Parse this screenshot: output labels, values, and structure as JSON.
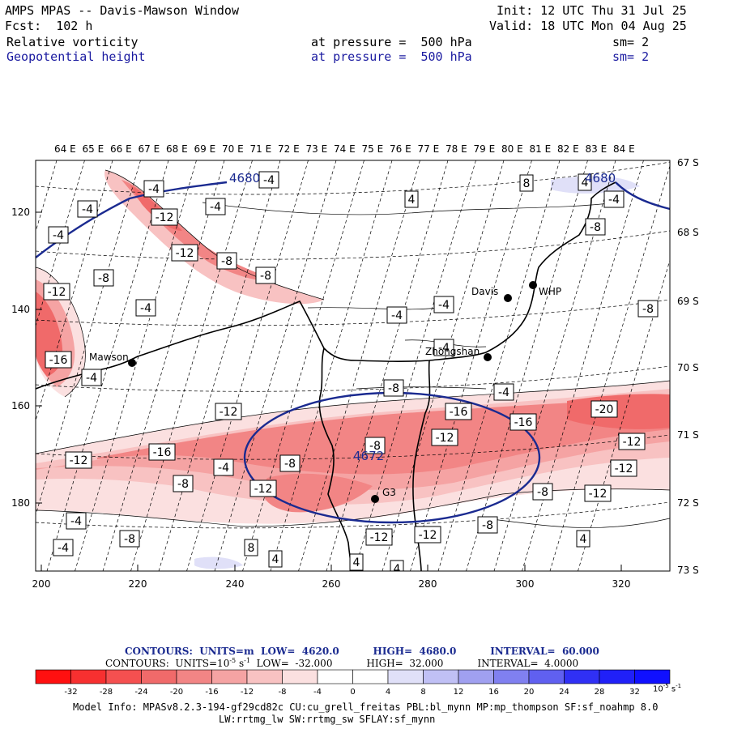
{
  "header": {
    "title": "AMPS MPAS -- Davis-Mawson Window",
    "fcst": "Fcst:  102 h",
    "init": "Init: 12 UTC Thu 31 Jul 25",
    "valid": "Valid: 18 UTC Mon 04 Aug 25",
    "field1": {
      "name": "Relative vorticity",
      "level": "at pressure =  500 hPa",
      "sm": "sm= 2"
    },
    "field2": {
      "name": "Geopotential height",
      "level": "at pressure =  500 hPa",
      "sm": "sm= 2"
    }
  },
  "map": {
    "top_labels": [
      "64 E",
      "65 E",
      "66 E",
      "67 E",
      "68 E",
      "69 E",
      "70 E",
      "71 E",
      "72 E",
      "73 E",
      "74 E",
      "75 E",
      "76 E",
      "77 E",
      "78 E",
      "79 E",
      "80 E",
      "81 E",
      "82 E",
      "83 E",
      "84 E"
    ],
    "right_labels": [
      "67 S",
      "68 S",
      "69 S",
      "70 S",
      "71 S",
      "72 S",
      "73 S"
    ],
    "left_labels": [
      "120",
      "140",
      "160",
      "180"
    ],
    "bottom_labels": [
      "200",
      "220",
      "240",
      "260",
      "280",
      "300",
      "320"
    ],
    "stations": [
      {
        "name": "Mawson"
      },
      {
        "name": "Davis"
      },
      {
        "name": "WHP"
      },
      {
        "name": "Zhongshan"
      },
      {
        "name": "G3"
      }
    ],
    "height_labels": [
      "4680",
      "4680",
      "4672"
    ],
    "vort_labels": [
      "-4",
      "-4",
      "-4",
      "-4",
      "-12",
      "-4",
      "-12",
      "-8",
      "-8",
      "-12",
      "-8",
      "-4",
      "-4",
      "-16",
      "-4",
      "-4",
      "-4",
      "-8",
      "-4",
      "-12",
      "-16",
      "-12",
      "-16",
      "-20",
      "-12",
      "-8",
      "-12",
      "-16",
      "-12",
      "-8",
      "-8",
      "-12",
      "-4",
      "-8",
      "-12",
      "-8",
      "-4",
      "-8",
      "-4",
      "-12",
      "-12",
      "-8",
      "-4",
      "-8",
      "4",
      "8",
      "4",
      "4",
      "8",
      "4",
      "4",
      "4"
    ]
  },
  "contours_line1": {
    "label": "CONTOURS:",
    "units": "UNITS=m",
    "low": "LOW=",
    "low_val": "4620.0",
    "high": "HIGH=",
    "high_val": "4680.0",
    "interval": "INTERVAL=",
    "interval_val": "60.000"
  },
  "contours_line2": {
    "label": "CONTOURS:",
    "units": "UNITS=10",
    "units_exp": "-5",
    "units_unit": "s",
    "units_unit_exp": "-1",
    "low": "LOW=",
    "low_val": "-32.000",
    "high": "HIGH=",
    "high_val": "32.000",
    "interval": "INTERVAL=",
    "interval_val": "4.0000"
  },
  "colorbar": {
    "ticks": [
      "-32",
      "-28",
      "-24",
      "-20",
      "-16",
      "-12",
      "-8",
      "-4",
      "0",
      "4",
      "8",
      "12",
      "16",
      "20",
      "24",
      "28",
      "32"
    ],
    "colors": [
      "#ff1010",
      "#f73030",
      "#f55050",
      "#f06a6a",
      "#f28585",
      "#f5a3a3",
      "#f8c2c2",
      "#fbe0e0",
      "#ffffff",
      "#ffffff",
      "#e0e0f8",
      "#c0c0f5",
      "#a0a0f0",
      "#8080f0",
      "#6060f0",
      "#3030f5",
      "#1010ff"
    ],
    "unit_base": "10",
    "unit_exp": "-5",
    "unit_s": "s",
    "unit_s_exp": "-1"
  },
  "model_info": {
    "line1": "Model Info: MPASv8.2.3-194-gf29cd82c CU:cu_grell_freitas PBL:bl_mynn MP:mp_thompson SF:sf_noahmp 8.0",
    "line2": "LW:rrtmg_lw SW:rrtmg_sw SFLAY:sf_mynn"
  }
}
